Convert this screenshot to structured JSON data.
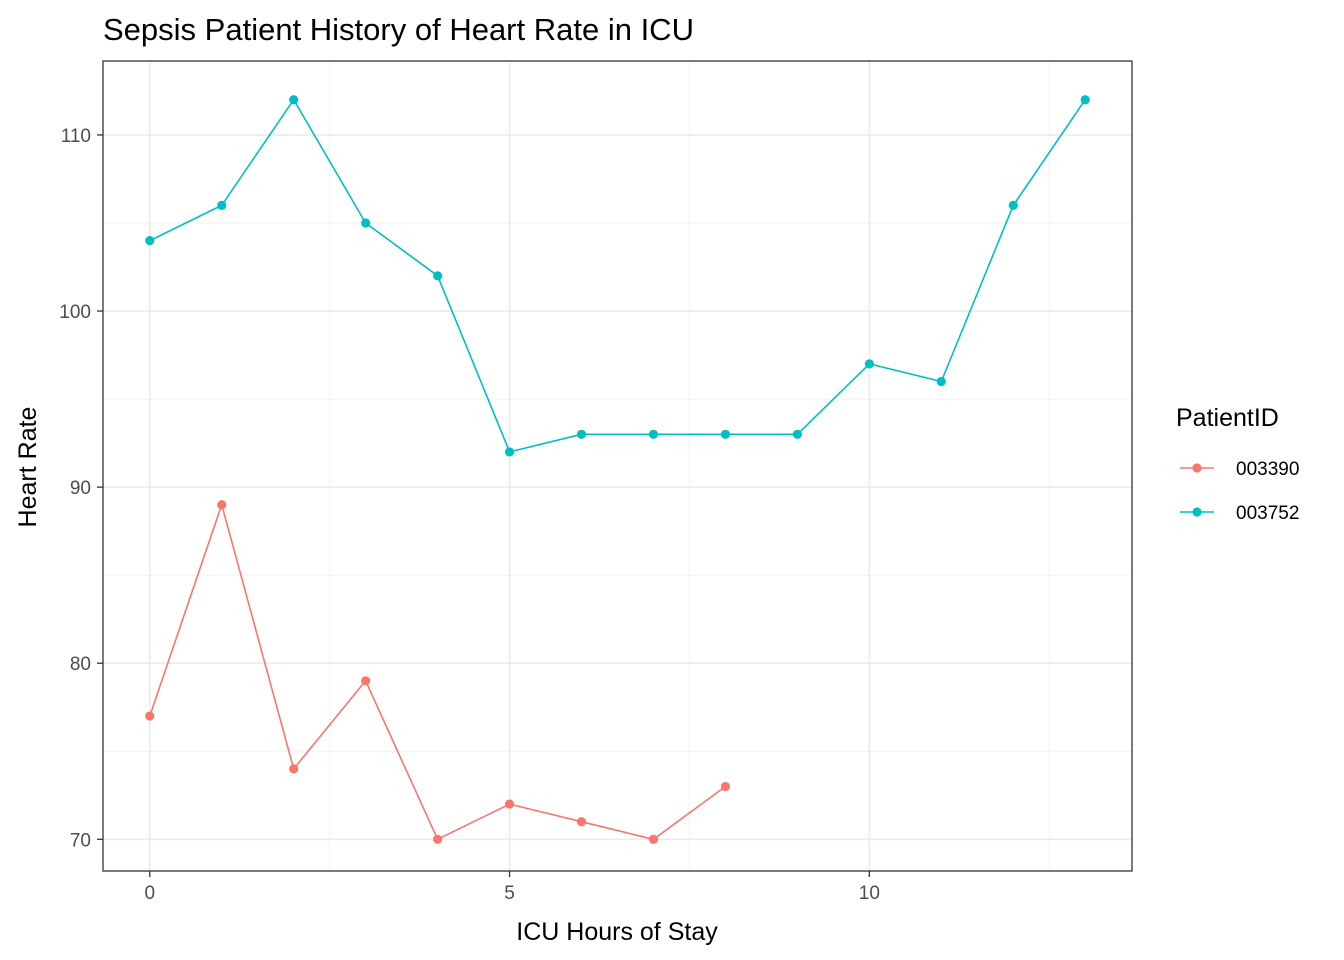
{
  "chart_data": {
    "type": "line",
    "title": "Sepsis Patient History of Heart Rate in ICU",
    "xlabel": "ICU Hours of Stay",
    "ylabel": "Heart Rate",
    "xlim": [
      -0.65,
      13.65
    ],
    "ylim": [
      68.2,
      114.2
    ],
    "x_ticks": [
      0,
      5,
      10
    ],
    "y_ticks": [
      70,
      80,
      90,
      100,
      110
    ],
    "x_minor_ticks": [
      2.5,
      7.5,
      12.5
    ],
    "y_minor_ticks": [
      75,
      85,
      95,
      105
    ],
    "grid": true,
    "legend": {
      "title": "PatientID",
      "position": "right"
    },
    "series": [
      {
        "name": "003390",
        "color": "#F8766D",
        "x": [
          0,
          1,
          2,
          3,
          4,
          5,
          6,
          7,
          8
        ],
        "y": [
          77,
          89,
          74,
          79,
          70,
          72,
          71,
          70,
          73
        ]
      },
      {
        "name": "003752",
        "color": "#00BFC4",
        "x": [
          0,
          1,
          2,
          3,
          4,
          5,
          6,
          7,
          8,
          9,
          10,
          11,
          12,
          13
        ],
        "y": [
          104,
          106,
          112,
          105,
          102,
          92,
          93,
          93,
          93,
          93,
          97,
          96,
          106,
          112
        ]
      }
    ]
  }
}
